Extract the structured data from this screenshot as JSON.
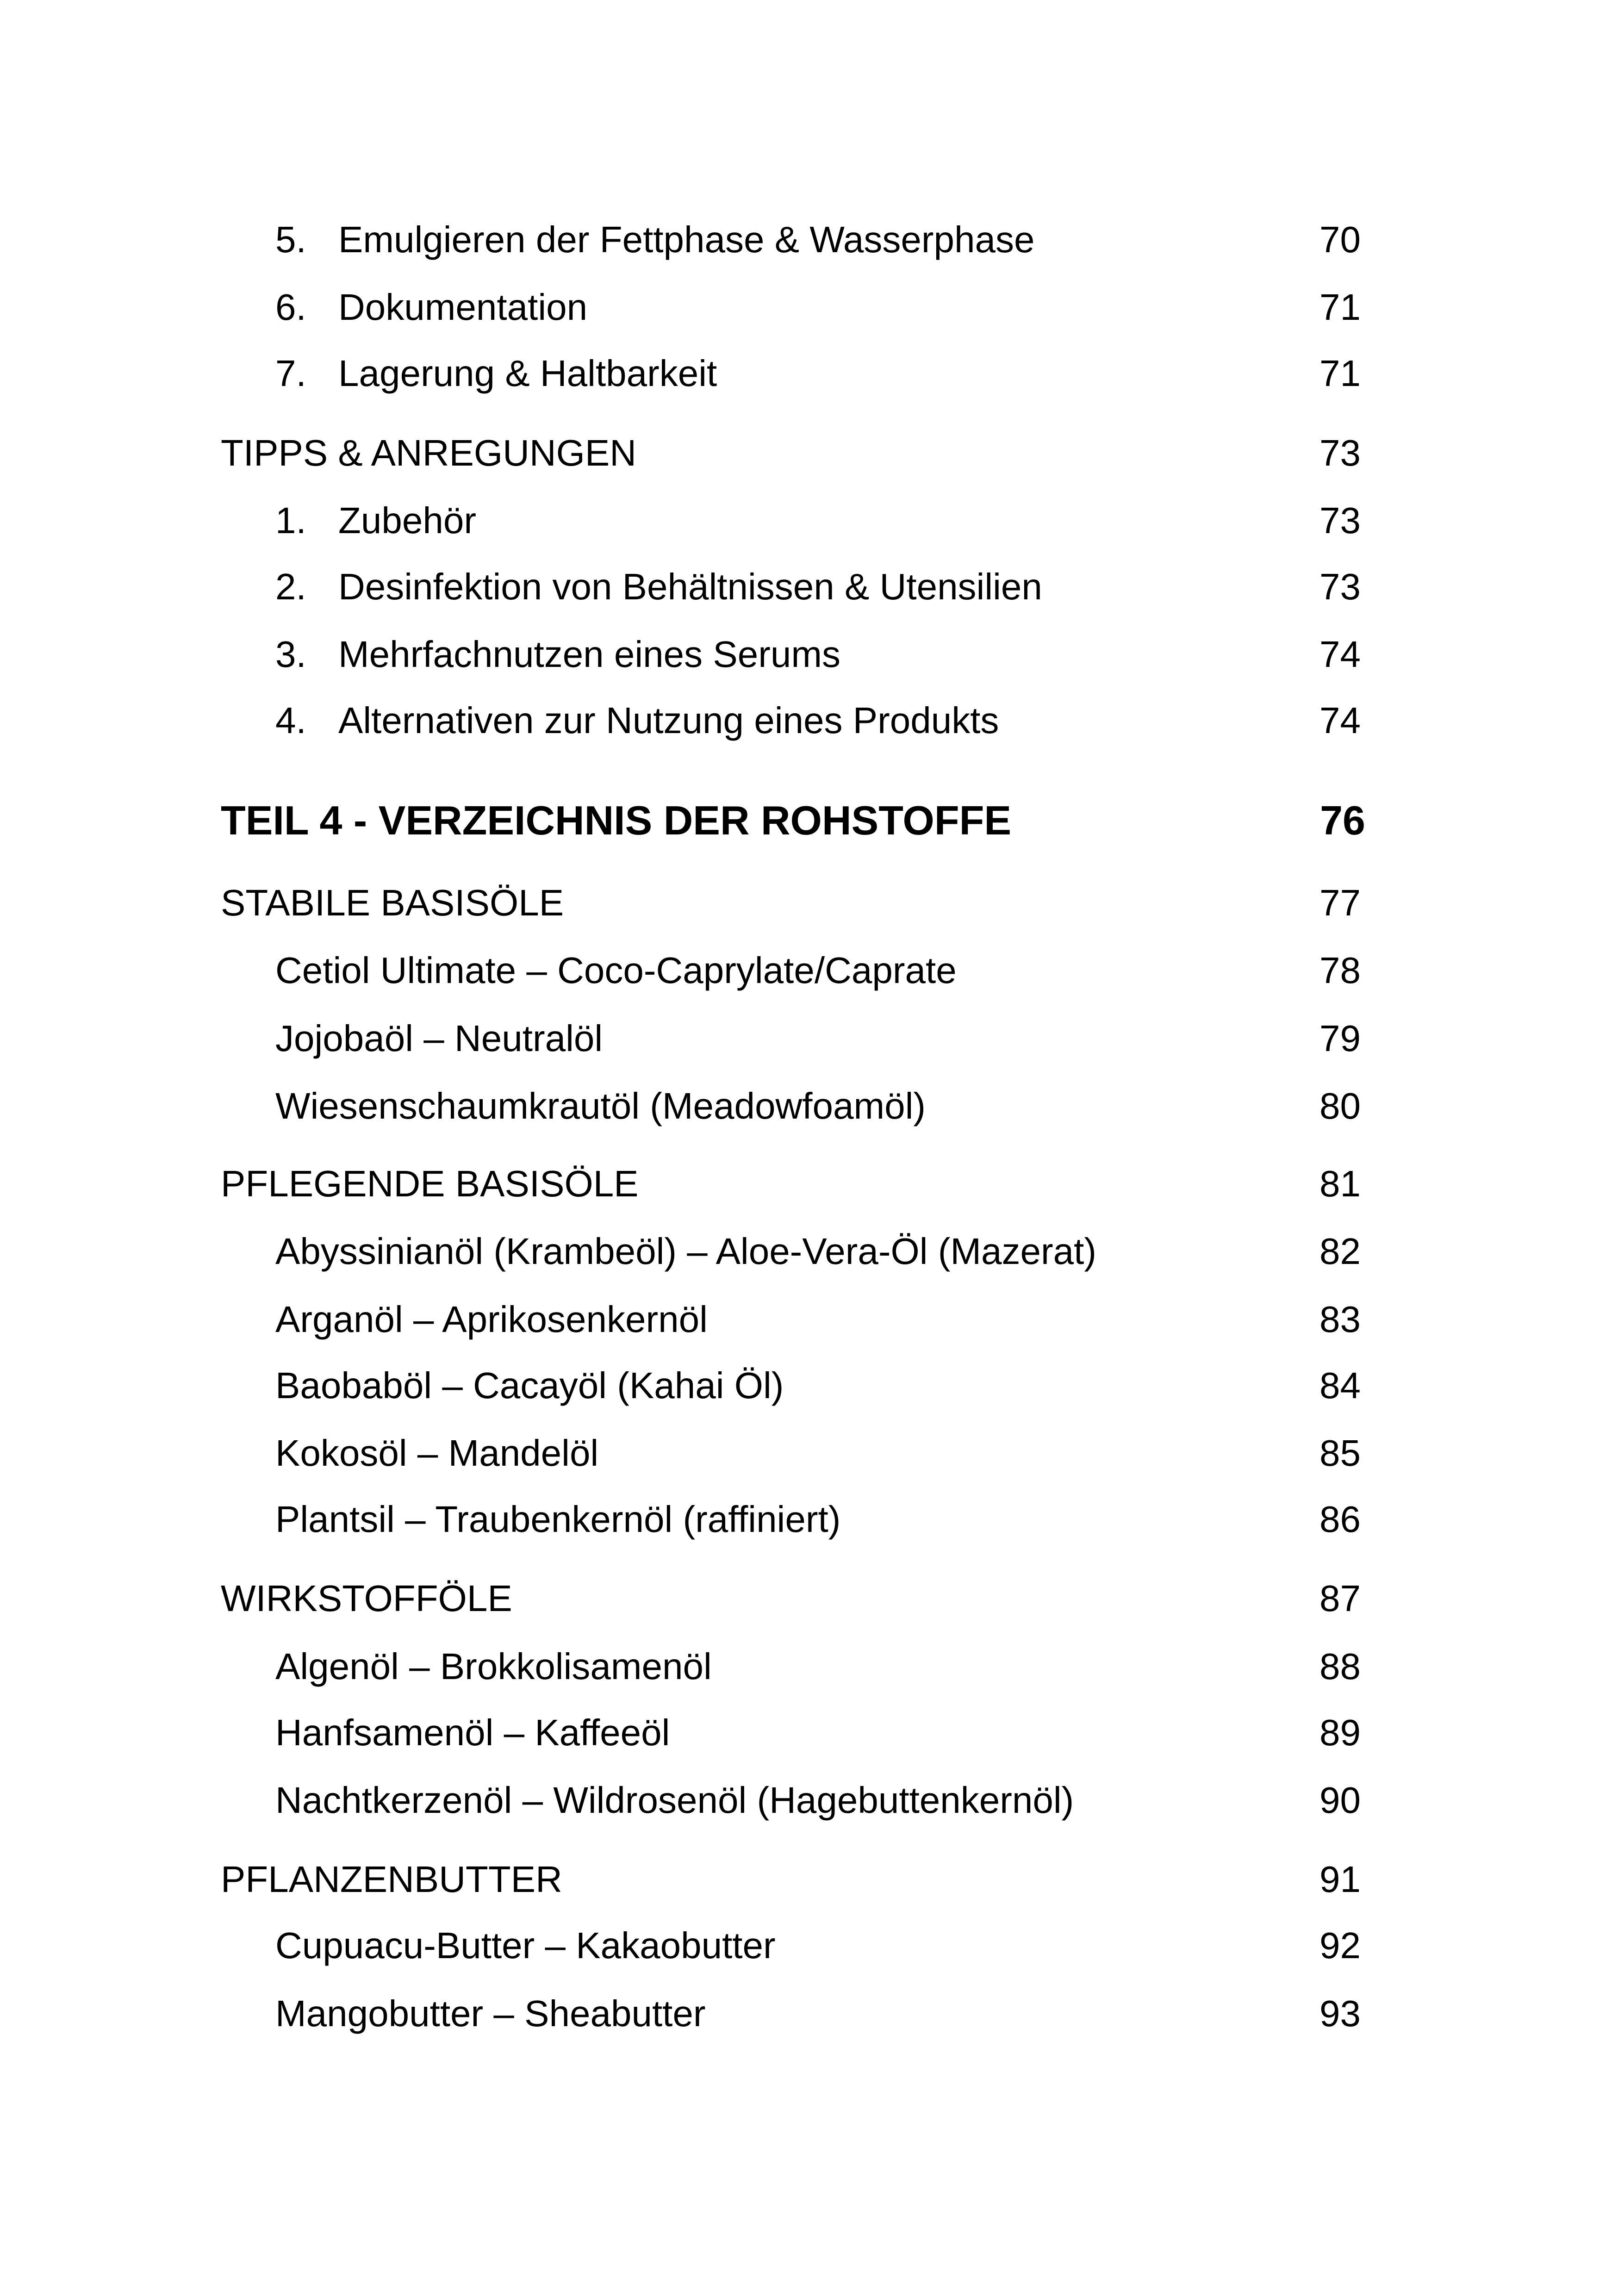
{
  "toc": [
    {
      "type": "sub",
      "num": "5.",
      "title": "Emulgieren der Fettphase & Wasserphase",
      "page": "70"
    },
    {
      "type": "sub",
      "num": "6.",
      "title": "Dokumentation",
      "page": "71"
    },
    {
      "type": "sub",
      "num": "7.",
      "title": "Lagerung & Haltbarkeit",
      "page": "71"
    },
    {
      "type": "sec",
      "title": "TIPPS & ANREGUNGEN",
      "page": "73"
    },
    {
      "type": "sub",
      "num": "1.",
      "title": "Zubehör",
      "page": "73"
    },
    {
      "type": "sub",
      "num": "2.",
      "title": "Desinfektion von Behältnissen & Utensilien",
      "page": "73"
    },
    {
      "type": "sub",
      "num": "3.",
      "title": "Mehrfachnutzen eines Serums",
      "page": "74"
    },
    {
      "type": "sub",
      "num": "4.",
      "title": "Alternativen zur Nutzung eines Produkts",
      "page": "74"
    },
    {
      "type": "head",
      "title": "TEIL 4 - VERZEICHNIS DER ROHSTOFFE",
      "page": "76"
    },
    {
      "type": "sec",
      "title": "STABILE BASISÖLE",
      "page": "77"
    },
    {
      "type": "ent",
      "title": "Cetiol Ultimate – Coco-Caprylate/Caprate",
      "page": "78"
    },
    {
      "type": "ent",
      "title": "Jojobaöl – Neutralöl",
      "page": "79"
    },
    {
      "type": "ent",
      "title": "Wiesenschaumkrautöl (Meadowfoamöl)",
      "page": "80"
    },
    {
      "type": "sec",
      "title": "PFLEGENDE BASISÖLE",
      "page": "81"
    },
    {
      "type": "ent",
      "title": "Abyssinianöl (Krambeöl) – Aloe-Vera-Öl (Mazerat)",
      "page": "82"
    },
    {
      "type": "ent",
      "title": "Arganöl – Aprikosenkernöl",
      "page": "83"
    },
    {
      "type": "ent",
      "title": "Baobaböl – Cacayöl (Kahai Öl)",
      "page": "84"
    },
    {
      "type": "ent",
      "title": "Kokosöl – Mandelöl",
      "page": "85"
    },
    {
      "type": "ent",
      "title": "Plantsil – Traubenkernöl (raffiniert)",
      "page": "86"
    },
    {
      "type": "sec",
      "title": "WIRKSTOFFÖLE",
      "page": "87"
    },
    {
      "type": "ent",
      "title": "Algenöl – Brokkolisamenöl",
      "page": "88"
    },
    {
      "type": "ent",
      "title": "Hanfsamenöl – Kaffeeöl",
      "page": "89"
    },
    {
      "type": "ent",
      "title": "Nachtkerzenöl – Wildrosenöl (Hagebuttenkernöl)",
      "page": "90"
    },
    {
      "type": "sec",
      "title": "PFLANZENBUTTER",
      "page": "91"
    },
    {
      "type": "ent",
      "title": "Cupuacu-Butter – Kakaobutter",
      "page": "92"
    },
    {
      "type": "ent",
      "title": "Mangobutter – Sheabutter",
      "page": "93"
    }
  ]
}
